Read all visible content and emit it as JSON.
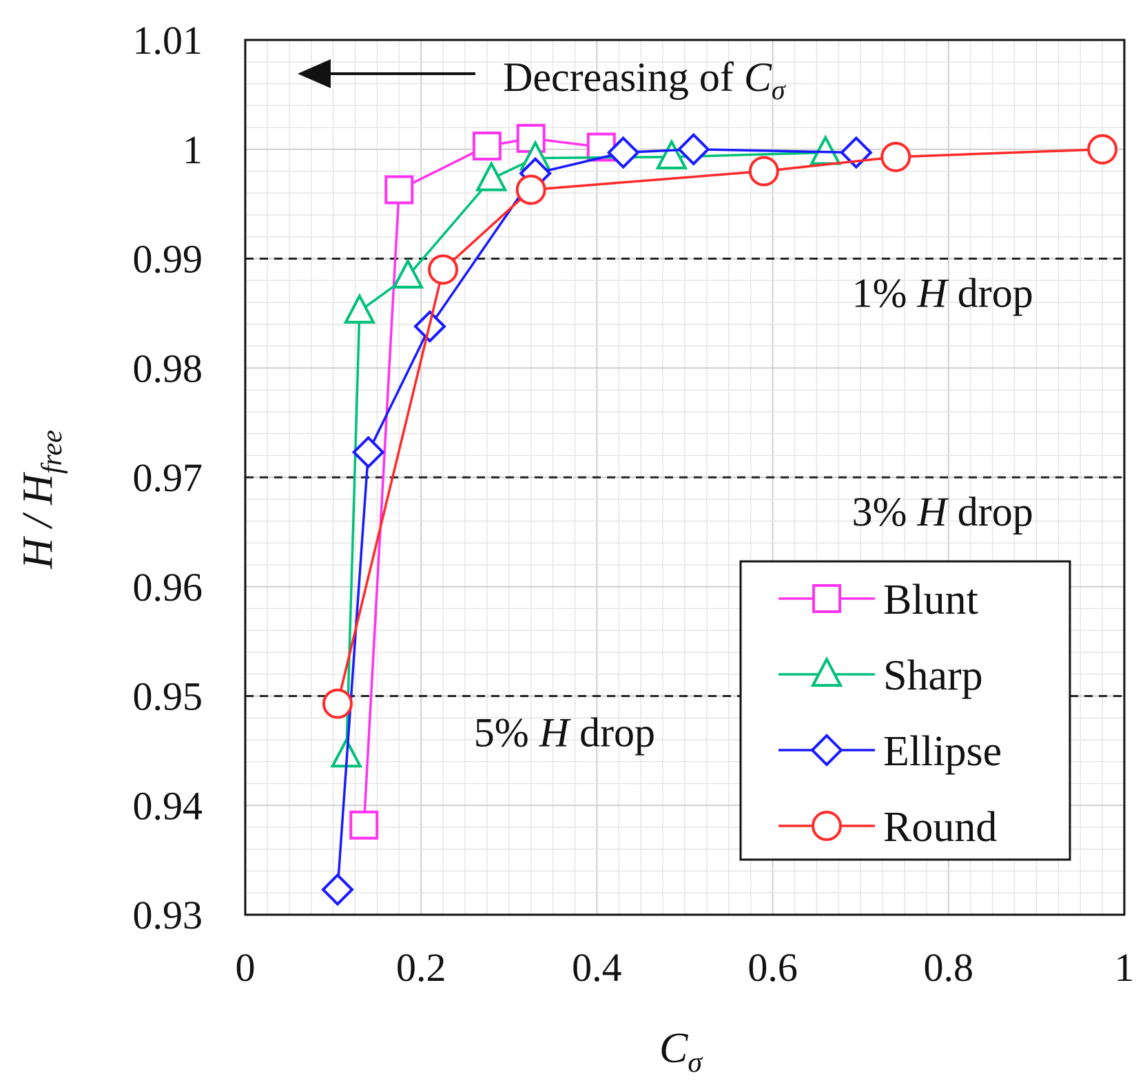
{
  "chart_data": {
    "type": "line",
    "xlabel": {
      "main": "C",
      "sub": "σ"
    },
    "ylabel": {
      "main": "H / H",
      "sub": "free"
    },
    "xlim": [
      0,
      1
    ],
    "ylim": [
      0.93,
      1.01
    ],
    "x_ticks": [
      0,
      0.2,
      0.4,
      0.6,
      0.8,
      1
    ],
    "x_tick_labels": [
      "0",
      "0.2",
      "0.4",
      "0.6",
      "0.8",
      "1"
    ],
    "y_ticks": [
      0.93,
      0.94,
      0.95,
      0.96,
      0.97,
      0.98,
      0.99,
      1,
      1.01
    ],
    "y_tick_labels": [
      "0.93",
      "0.94",
      "0.95",
      "0.96",
      "0.97",
      "0.98",
      "0.99",
      "1",
      "1.01"
    ],
    "grid": true,
    "reference_lines": [
      {
        "y": 0.99,
        "label_prefix": "1% ",
        "label_var": "H",
        "label_suffix": " drop",
        "label_x": 0.69,
        "label_y": 0.9856
      },
      {
        "y": 0.97,
        "label_prefix": "3% ",
        "label_var": "H",
        "label_suffix": " drop",
        "label_x": 0.69,
        "label_y": 0.9656
      },
      {
        "y": 0.95,
        "label_prefix": "5% ",
        "label_var": "H",
        "label_suffix": " drop",
        "label_x": 0.26,
        "label_y": 0.9454
      }
    ],
    "annotation": {
      "text": "Decreasing of ",
      "var": "C",
      "sub": "σ",
      "direction": "left"
    },
    "legend_position": "bottom-right",
    "series": [
      {
        "name": "Blunt",
        "color": "#ff33ee",
        "marker": "square",
        "x": [
          0.135,
          0.175,
          0.275,
          0.325,
          0.405
        ],
        "y": [
          0.9382,
          0.9963,
          1.0003,
          1.001,
          1.0002
        ]
      },
      {
        "name": "Sharp",
        "color": "#00c07a",
        "marker": "triangle",
        "x": [
          0.115,
          0.13,
          0.185,
          0.28,
          0.33,
          0.485,
          0.66
        ],
        "y": [
          0.9446,
          0.9852,
          0.9884,
          0.9973,
          0.9992,
          0.9993,
          0.9997
        ]
      },
      {
        "name": "Ellipse",
        "color": "#1a1aff",
        "marker": "diamond",
        "x": [
          0.105,
          0.14,
          0.21,
          0.33,
          0.43,
          0.51,
          0.695
        ],
        "y": [
          0.9323,
          0.9723,
          0.9838,
          0.9978,
          0.9997,
          1.0,
          0.9997
        ]
      },
      {
        "name": "Round",
        "color": "#ff2a2a",
        "marker": "circle",
        "x": [
          0.105,
          0.225,
          0.325,
          0.59,
          0.74,
          0.975
        ],
        "y": [
          0.9493,
          0.989,
          0.9963,
          0.998,
          0.9993,
          1.0
        ]
      }
    ]
  }
}
